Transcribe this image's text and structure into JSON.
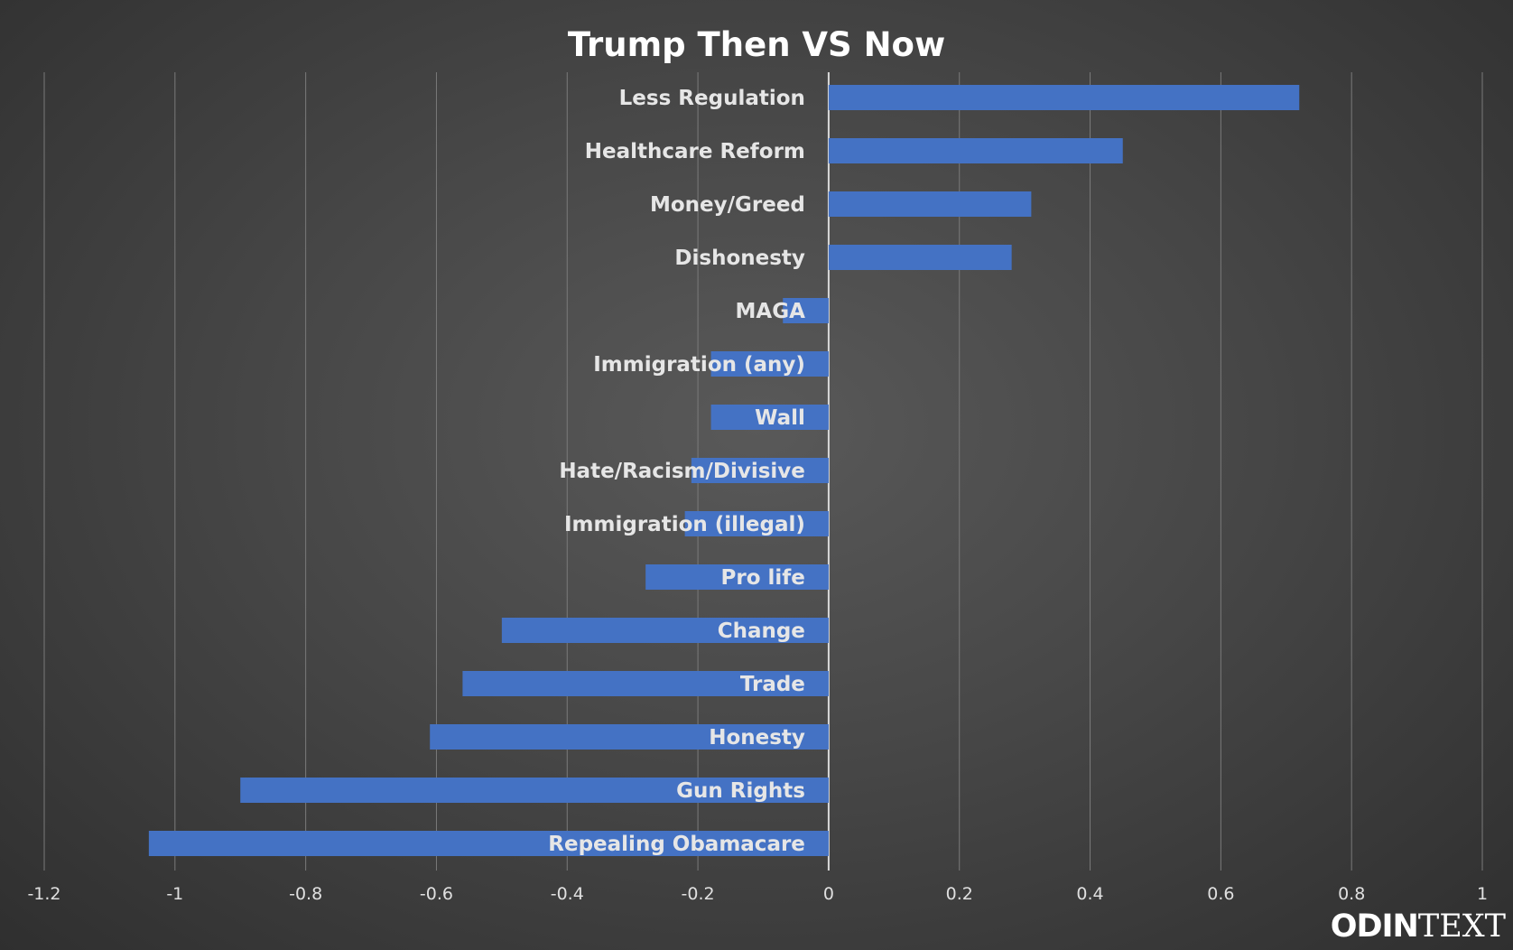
{
  "chart_data": {
    "type": "bar",
    "orientation": "horizontal",
    "title": "Trump Then VS Now",
    "xlabel": "",
    "ylabel": "",
    "xlim": [
      -1.2,
      1
    ],
    "x_ticks": [
      "-1.2",
      "-1",
      "-0.8",
      "-0.6",
      "-0.4",
      "-0.2",
      "0",
      "0.2",
      "0.4",
      "0.6",
      "0.8",
      "1"
    ],
    "grid": "vertical",
    "legend": "none",
    "bar_color": "#4472c4",
    "categories": [
      "Less Regulation",
      "Healthcare Reform",
      "Money/Greed",
      "Dishonesty",
      "MAGA",
      "Immigration (any)",
      "Wall",
      "Hate/Racism/Divisive",
      "Immigration (illegal)",
      "Pro life",
      "Change",
      "Trade",
      "Honesty",
      "Gun Rights",
      "Repealing Obamacare"
    ],
    "values": [
      0.72,
      0.45,
      0.31,
      0.28,
      -0.07,
      -0.18,
      -0.18,
      -0.21,
      -0.22,
      -0.28,
      -0.5,
      -0.56,
      -0.61,
      -0.9,
      -1.04
    ]
  },
  "logo": {
    "mark": "ODIN",
    "word": "TEXT"
  }
}
